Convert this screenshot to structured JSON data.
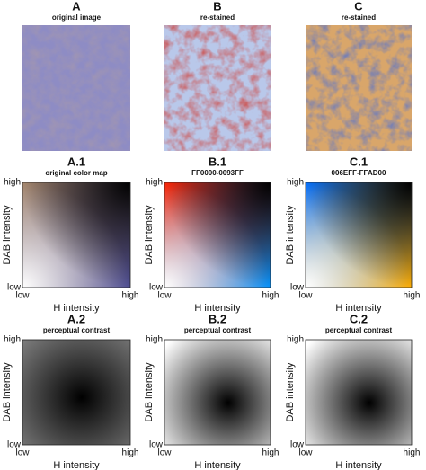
{
  "images": [
    {
      "letter": "A",
      "subtitle": "original image"
    },
    {
      "letter": "B",
      "subtitle": "re-stained"
    },
    {
      "letter": "C",
      "subtitle": "re-stained"
    }
  ],
  "color_maps": [
    {
      "letter": "A.1",
      "subtitle": "original color map",
      "y_label": "DAB intensity",
      "x_label": "H intensity",
      "y_ticks": [
        "high",
        "low"
      ],
      "x_ticks": [
        "low",
        "high"
      ]
    },
    {
      "letter": "B.1",
      "subtitle": "FF0000-0093FF",
      "y_label": "DAB intensity",
      "x_label": "H intensity",
      "y_ticks": [
        "high",
        "low"
      ],
      "x_ticks": [
        "low",
        "high"
      ]
    },
    {
      "letter": "C.1",
      "subtitle": "006EFF-FFAD00",
      "y_label": "DAB intensity",
      "x_label": "H intensity",
      "y_ticks": [
        "high",
        "low"
      ],
      "x_ticks": [
        "low",
        "high"
      ]
    }
  ],
  "contrast_maps": [
    {
      "letter": "A.2",
      "subtitle": "perceptual contrast",
      "y_label": "DAB intensity",
      "x_label": "H intensity",
      "y_ticks": [
        "high",
        "low"
      ],
      "x_ticks": [
        "low",
        "high"
      ]
    },
    {
      "letter": "B.2",
      "subtitle": "perceptual contrast",
      "y_label": "DAB intensity",
      "x_label": "H intensity",
      "y_ticks": [
        "high",
        "low"
      ],
      "x_ticks": [
        "low",
        "high"
      ]
    },
    {
      "letter": "C.2",
      "subtitle": "perceptual contrast",
      "y_label": "DAB intensity",
      "x_label": "H intensity",
      "y_ticks": [
        "high",
        "low"
      ],
      "x_ticks": [
        "low",
        "high"
      ]
    }
  ]
}
